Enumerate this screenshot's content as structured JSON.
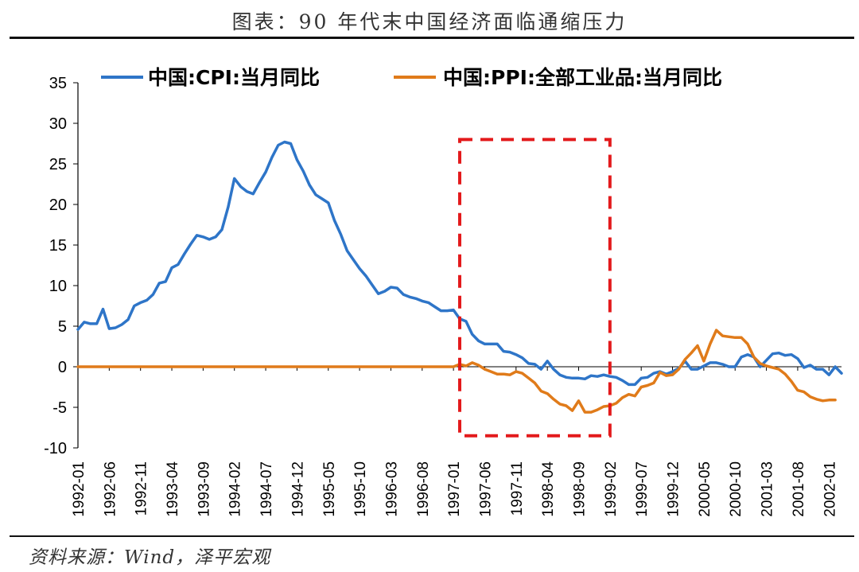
{
  "title": "图表：90 年代末中国经济面临通缩压力",
  "source": "资料来源：Wind，泽平宏观",
  "chart_data": {
    "type": "line",
    "ylim": [
      -10,
      35
    ],
    "yticks": [
      35,
      30,
      25,
      20,
      15,
      10,
      5,
      0,
      -5,
      -10
    ],
    "x_tick_labels": [
      "1992-01",
      "1992-06",
      "1992-11",
      "1993-04",
      "1993-09",
      "1994-02",
      "1994-07",
      "1994-12",
      "1995-05",
      "1995-10",
      "1996-03",
      "1996-08",
      "1997-01",
      "1997-06",
      "1997-11",
      "1998-04",
      "1998-09",
      "1999-02",
      "1999-07",
      "1999-12",
      "2000-05",
      "2000-10",
      "2001-03",
      "2001-08",
      "2002-01"
    ],
    "x_range_months": [
      0,
      122
    ],
    "highlight_box": {
      "from_month": 61,
      "to_month": 85,
      "y_top": 28,
      "y_bottom": -8.5,
      "color": "#e31a1c"
    },
    "series": [
      {
        "name": "中国:CPI:当月同比",
        "color": "#2e75c8",
        "points": [
          [
            0,
            4.6
          ],
          [
            1,
            5.5
          ],
          [
            2,
            5.3
          ],
          [
            3,
            5.3
          ],
          [
            4,
            7.1
          ],
          [
            5,
            4.7
          ],
          [
            6,
            4.8
          ],
          [
            7,
            5.2
          ],
          [
            8,
            5.8
          ],
          [
            9,
            7.5
          ],
          [
            10,
            7.9
          ],
          [
            11,
            8.2
          ],
          [
            12,
            8.9
          ],
          [
            13,
            10.3
          ],
          [
            14,
            10.5
          ],
          [
            15,
            12.2
          ],
          [
            16,
            12.6
          ],
          [
            17,
            13.9
          ],
          [
            18,
            15.1
          ],
          [
            19,
            16.2
          ],
          [
            20,
            16.0
          ],
          [
            21,
            15.7
          ],
          [
            22,
            16.0
          ],
          [
            23,
            16.9
          ],
          [
            24,
            19.7
          ],
          [
            25,
            23.2
          ],
          [
            26,
            22.2
          ],
          [
            27,
            21.6
          ],
          [
            28,
            21.3
          ],
          [
            29,
            22.7
          ],
          [
            30,
            24.0
          ],
          [
            31,
            25.8
          ],
          [
            32,
            27.3
          ],
          [
            33,
            27.7
          ],
          [
            34,
            27.5
          ],
          [
            35,
            25.5
          ],
          [
            36,
            24.1
          ],
          [
            37,
            22.4
          ],
          [
            38,
            21.2
          ],
          [
            39,
            20.7
          ],
          [
            40,
            20.2
          ],
          [
            41,
            18.0
          ],
          [
            42,
            16.3
          ],
          [
            43,
            14.3
          ],
          [
            44,
            13.2
          ],
          [
            45,
            12.1
          ],
          [
            46,
            11.2
          ],
          [
            47,
            10.1
          ],
          [
            48,
            9.0
          ],
          [
            49,
            9.3
          ],
          [
            50,
            9.8
          ],
          [
            51,
            9.7
          ],
          [
            52,
            8.9
          ],
          [
            53,
            8.6
          ],
          [
            54,
            8.4
          ],
          [
            55,
            8.1
          ],
          [
            56,
            7.9
          ],
          [
            57,
            7.4
          ],
          [
            58,
            6.9
          ],
          [
            59,
            6.9
          ],
          [
            60,
            7.0
          ],
          [
            61,
            5.9
          ],
          [
            62,
            5.6
          ],
          [
            63,
            4.0
          ],
          [
            64,
            3.2
          ],
          [
            65,
            2.8
          ],
          [
            66,
            2.8
          ],
          [
            67,
            2.8
          ],
          [
            68,
            1.9
          ],
          [
            69,
            1.8
          ],
          [
            70,
            1.5
          ],
          [
            71,
            1.1
          ],
          [
            72,
            0.4
          ],
          [
            73,
            0.3
          ],
          [
            74,
            -0.3
          ],
          [
            75,
            0.7
          ],
          [
            76,
            -0.3
          ],
          [
            77,
            -1.0
          ],
          [
            78,
            -1.3
          ],
          [
            79,
            -1.4
          ],
          [
            80,
            -1.4
          ],
          [
            81,
            -1.5
          ],
          [
            82,
            -1.1
          ],
          [
            83,
            -1.2
          ],
          [
            84,
            -1.0
          ],
          [
            85,
            -1.2
          ],
          [
            86,
            -1.3
          ],
          [
            87,
            -1.7
          ],
          [
            88,
            -2.2
          ],
          [
            89,
            -2.2
          ],
          [
            90,
            -1.4
          ],
          [
            91,
            -1.3
          ],
          [
            92,
            -0.8
          ],
          [
            93,
            -0.6
          ],
          [
            94,
            -0.9
          ],
          [
            95,
            -0.6
          ],
          [
            96,
            -0.2
          ],
          [
            97,
            0.7
          ],
          [
            98,
            -0.3
          ],
          [
            99,
            -0.3
          ],
          [
            100,
            0.1
          ],
          [
            101,
            0.5
          ],
          [
            102,
            0.5
          ],
          [
            103,
            0.3
          ],
          [
            104,
            0.0
          ],
          [
            105,
            0.0
          ],
          [
            106,
            1.2
          ],
          [
            107,
            1.5
          ],
          [
            108,
            1.2
          ],
          [
            109,
            0.0
          ],
          [
            110,
            0.8
          ],
          [
            111,
            1.6
          ],
          [
            112,
            1.7
          ],
          [
            113,
            1.4
          ],
          [
            114,
            1.5
          ],
          [
            115,
            1.0
          ],
          [
            116,
            -0.1
          ],
          [
            117,
            0.2
          ],
          [
            118,
            -0.3
          ],
          [
            119,
            -0.3
          ],
          [
            120,
            -1.0
          ],
          [
            121,
            0.0
          ],
          [
            122,
            -0.8
          ]
        ]
      },
      {
        "name": "中国:PPI:全部工业品:当月同比",
        "color": "#e07b1a",
        "points": [
          [
            0,
            0
          ],
          [
            60,
            0
          ],
          [
            61,
            0.3
          ],
          [
            62,
            0.1
          ],
          [
            63,
            0.5
          ],
          [
            64,
            0.2
          ],
          [
            65,
            -0.3
          ],
          [
            66,
            -0.6
          ],
          [
            67,
            -0.9
          ],
          [
            68,
            -0.9
          ],
          [
            69,
            -1.0
          ],
          [
            70,
            -0.6
          ],
          [
            71,
            -0.8
          ],
          [
            72,
            -1.4
          ],
          [
            73,
            -2.0
          ],
          [
            74,
            -3.0
          ],
          [
            75,
            -3.3
          ],
          [
            76,
            -4.0
          ],
          [
            77,
            -4.6
          ],
          [
            78,
            -4.8
          ],
          [
            79,
            -5.4
          ],
          [
            80,
            -4.2
          ],
          [
            81,
            -5.6
          ],
          [
            82,
            -5.6
          ],
          [
            83,
            -5.3
          ],
          [
            84,
            -4.9
          ],
          [
            85,
            -4.8
          ],
          [
            86,
            -4.5
          ],
          [
            87,
            -3.8
          ],
          [
            88,
            -3.4
          ],
          [
            89,
            -3.6
          ],
          [
            90,
            -2.5
          ],
          [
            91,
            -2.3
          ],
          [
            92,
            -2.0
          ],
          [
            93,
            -0.7
          ],
          [
            94,
            -1.1
          ],
          [
            95,
            -1.0
          ],
          [
            96,
            -0.3
          ],
          [
            97,
            0.9
          ],
          [
            98,
            1.7
          ],
          [
            99,
            2.6
          ],
          [
            100,
            0.7
          ],
          [
            101,
            2.8
          ],
          [
            102,
            4.5
          ],
          [
            103,
            3.8
          ],
          [
            104,
            3.7
          ],
          [
            105,
            3.6
          ],
          [
            106,
            3.6
          ],
          [
            107,
            2.8
          ],
          [
            108,
            1.2
          ],
          [
            109,
            0.4
          ],
          [
            110,
            0.1
          ],
          [
            111,
            -0.1
          ],
          [
            112,
            -0.3
          ],
          [
            113,
            -0.9
          ],
          [
            114,
            -1.8
          ],
          [
            115,
            -2.9
          ],
          [
            116,
            -3.1
          ],
          [
            117,
            -3.7
          ],
          [
            118,
            -4.0
          ],
          [
            119,
            -4.2
          ],
          [
            120,
            -4.1
          ],
          [
            121,
            -4.1
          ]
        ]
      }
    ]
  }
}
